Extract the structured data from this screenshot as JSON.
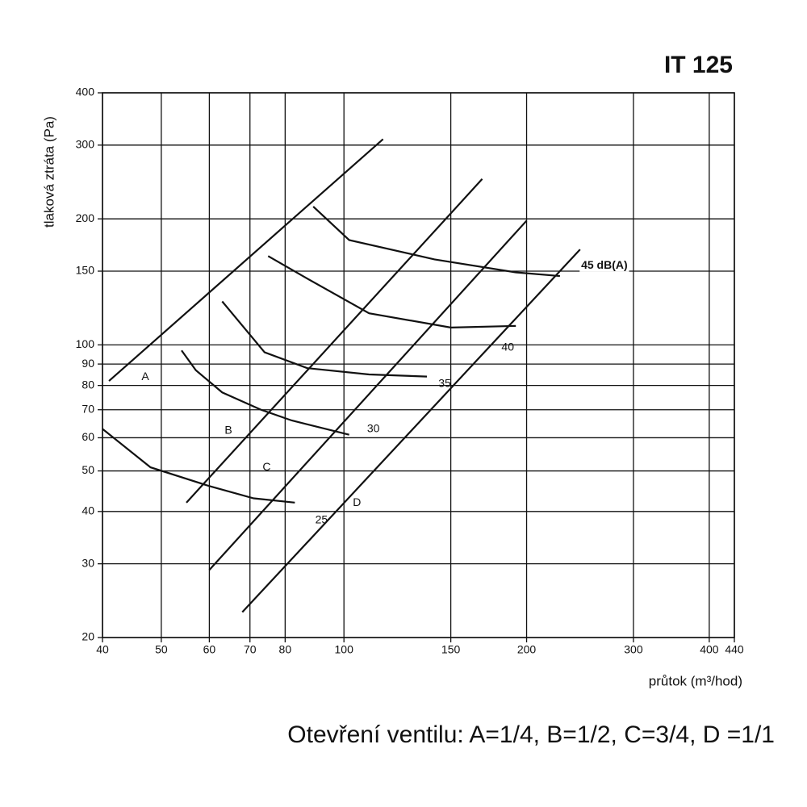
{
  "chart_data": {
    "type": "line",
    "title": "IT 125",
    "y_label": "tlaková ztráta (Pa)",
    "x_label": "průtok (m³/hod)",
    "caption": "Otevření ventilu: A=1/4, B=1/2, C=3/4, D =1/1",
    "xscale": "log",
    "yscale": "log",
    "grid": true,
    "xlim": [
      40,
      440
    ],
    "ylim": [
      20,
      400
    ],
    "xticks": [
      40,
      50,
      60,
      70,
      80,
      100,
      150,
      200,
      300,
      400,
      440
    ],
    "yticks": [
      20,
      30,
      40,
      50,
      60,
      70,
      80,
      90,
      100,
      150,
      200,
      300,
      400
    ],
    "series": [
      {
        "name": "A",
        "color": "#111111",
        "x": [
          41,
          116
        ],
        "values": [
          82,
          310
        ]
      },
      {
        "name": "B",
        "color": "#111111",
        "x": [
          55,
          169
        ],
        "values": [
          42,
          249
        ]
      },
      {
        "name": "C",
        "color": "#111111",
        "x": [
          60,
          200
        ],
        "values": [
          29,
          198
        ]
      },
      {
        "name": "D",
        "color": "#111111",
        "x": [
          68,
          245
        ],
        "values": [
          23,
          169
        ]
      },
      {
        "name": "25",
        "color": "#111111",
        "x": [
          40,
          48,
          60,
          71,
          83
        ],
        "values": [
          63,
          51,
          46,
          43,
          42
        ]
      },
      {
        "name": "30",
        "color": "#111111",
        "x": [
          54,
          57,
          63,
          73,
          82,
          102
        ],
        "values": [
          97,
          87,
          77,
          70,
          66,
          61
        ]
      },
      {
        "name": "35",
        "color": "#111111",
        "x": [
          63,
          74,
          87,
          110,
          137
        ],
        "values": [
          127,
          96,
          88,
          85,
          84
        ]
      },
      {
        "name": "40",
        "color": "#111111",
        "x": [
          75,
          87,
          110,
          150,
          192
        ],
        "values": [
          163,
          144,
          119,
          110,
          111
        ]
      },
      {
        "name": "45 dB(A)",
        "color": "#111111",
        "x": [
          89,
          102,
          141,
          192,
          227
        ],
        "values": [
          214,
          178,
          160,
          149,
          146
        ]
      }
    ]
  }
}
